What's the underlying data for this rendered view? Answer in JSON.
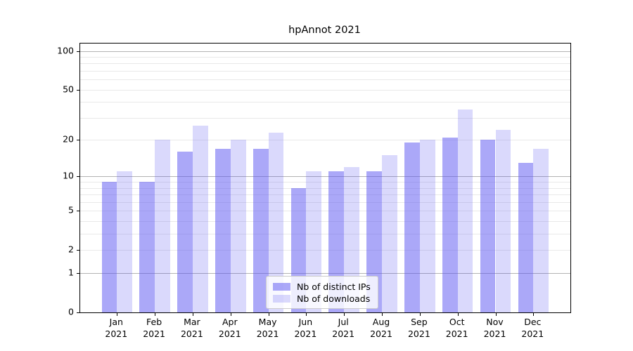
{
  "title": "hpAnnot 2021",
  "colors": {
    "bar_ips": "rgba(88,82,242,0.5)",
    "bar_downloads": "rgba(88,82,242,0.22)",
    "grid_major": "#b3b3b3",
    "grid_minor": "#e9e9e9",
    "axis_line": "#000000",
    "text": "#000000",
    "legend_border": "#cccccc"
  },
  "chart_data": {
    "type": "bar",
    "title": "hpAnnot 2021",
    "categories": [
      [
        "Jan",
        "2021"
      ],
      [
        "Feb",
        "2021"
      ],
      [
        "Mar",
        "2021"
      ],
      [
        "Apr",
        "2021"
      ],
      [
        "May",
        "2021"
      ],
      [
        "Jun",
        "2021"
      ],
      [
        "Jul",
        "2021"
      ],
      [
        "Aug",
        "2021"
      ],
      [
        "Sep",
        "2021"
      ],
      [
        "Oct",
        "2021"
      ],
      [
        "Nov",
        "2021"
      ],
      [
        "Dec",
        "2021"
      ]
    ],
    "series": [
      {
        "name": "Nb of distinct IPs",
        "values": [
          9,
          9,
          16,
          17,
          17,
          8,
          11,
          11,
          19,
          21,
          20,
          13
        ],
        "color_key": "bar_ips"
      },
      {
        "name": "Nb of downloads",
        "values": [
          11,
          20,
          26,
          20,
          23,
          11,
          12,
          15,
          20,
          35,
          24,
          17
        ],
        "color_key": "bar_downloads"
      }
    ],
    "xlabel": "",
    "ylabel": "",
    "yscale": "log1p",
    "ylim": [
      0,
      114
    ],
    "yticks": [
      0,
      1,
      2,
      5,
      10,
      20,
      50,
      100
    ],
    "ytick_labels": [
      "0",
      "1",
      "2",
      "5",
      "10",
      "20",
      "50",
      "100"
    ],
    "grid_major_at": [
      1,
      10,
      100
    ],
    "grid_minor_at": [
      2,
      3,
      4,
      5,
      6,
      7,
      8,
      9,
      20,
      30,
      40,
      50,
      60,
      70,
      80,
      90
    ],
    "grid": "on",
    "legend_position": "bottom-center"
  }
}
